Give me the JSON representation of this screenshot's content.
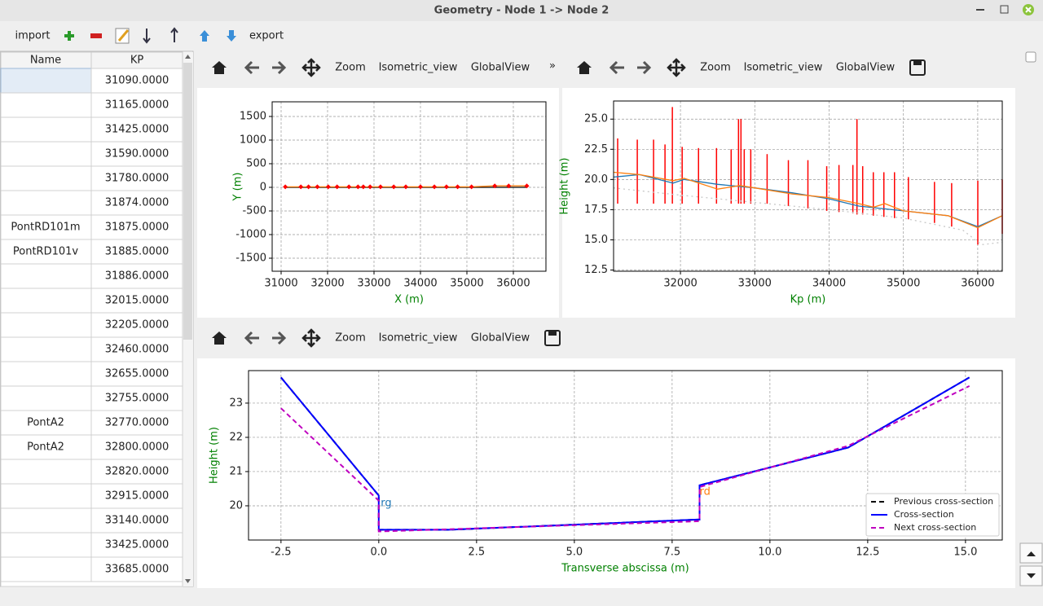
{
  "window": {
    "title": "Geometry - Node 1 -> Node 2"
  },
  "toolbar": {
    "import": "import",
    "export": "export"
  },
  "table": {
    "headers": [
      "Name",
      "KP"
    ],
    "rows": [
      [
        null,
        "31090.0000"
      ],
      [
        null,
        "31165.0000"
      ],
      [
        null,
        "31425.0000"
      ],
      [
        null,
        "31590.0000"
      ],
      [
        null,
        "31780.0000"
      ],
      [
        null,
        "31874.0000"
      ],
      [
        "PontRD101m",
        "31875.0000"
      ],
      [
        "PontRD101v",
        "31885.0000"
      ],
      [
        null,
        "31886.0000"
      ],
      [
        null,
        "32015.0000"
      ],
      [
        null,
        "32205.0000"
      ],
      [
        null,
        "32460.0000"
      ],
      [
        null,
        "32655.0000"
      ],
      [
        null,
        "32755.0000"
      ],
      [
        "PontA2",
        "32770.0000"
      ],
      [
        "PontA2",
        "32800.0000"
      ],
      [
        null,
        "32820.0000"
      ],
      [
        null,
        "32915.0000"
      ],
      [
        null,
        "33140.0000"
      ],
      [
        null,
        "33425.0000"
      ],
      [
        null,
        "33685.0000"
      ]
    ]
  },
  "plot_toolbars": [
    {
      "buttons": [
        "Zoom",
        "Isometric_view",
        "GlobalView"
      ],
      "overflow": "»"
    },
    {
      "buttons": [
        "Zoom",
        "Isometric_view",
        "GlobalView"
      ]
    },
    {
      "buttons": [
        "Zoom",
        "Isometric_view",
        "GlobalView"
      ]
    }
  ],
  "plots": [
    {
      "type": "line",
      "xlabel": "X (m)",
      "ylabel": "Y (m)",
      "xlim": [
        30807,
        36702
      ],
      "ylim": [
        -1776,
        1810
      ],
      "xticks": [
        31000,
        32000,
        33000,
        34000,
        35000,
        36000
      ],
      "yticks": [
        -1500,
        -1000,
        -500,
        0,
        500,
        1000,
        1500
      ],
      "grid": true,
      "series": [
        {
          "color": "#000000",
          "x": [
            31090,
            31425,
            31590,
            31780,
            32015,
            32205,
            32460,
            32655,
            32770,
            32915,
            33140,
            33425,
            33685,
            34000,
            34300,
            34560,
            34800,
            35100,
            35600,
            35900,
            36290
          ],
          "y": [
            0,
            0,
            0,
            0,
            0,
            0,
            0,
            0,
            0,
            0,
            0,
            0,
            0,
            0,
            0,
            0,
            0,
            0,
            0,
            0,
            0
          ]
        },
        {
          "color": "#ff7f0e",
          "marker_color": "#ff0000",
          "x": [
            31090,
            31425,
            31590,
            31780,
            32015,
            32205,
            32460,
            32655,
            32770,
            32915,
            33140,
            33425,
            33685,
            34000,
            34300,
            34560,
            34800,
            35100,
            35600,
            35900,
            36290
          ],
          "y": [
            10,
            10,
            10,
            10,
            10,
            10,
            10,
            10,
            10,
            10,
            10,
            10,
            10,
            10,
            10,
            10,
            10,
            10,
            30,
            30,
            30
          ]
        }
      ]
    },
    {
      "type": "line",
      "xlabel": "Kp (m)",
      "ylabel": "Height (m)",
      "xlim": [
        31100,
        36330
      ],
      "ylim": [
        12.4,
        26.5
      ],
      "xticks": [
        32000,
        33000,
        34000,
        35000,
        36000
      ],
      "yticks": [
        12.5,
        {
          "value": 15,
          "label": "15.0"
        },
        17.5,
        {
          "value": 20,
          "label": "20.0"
        },
        22.5,
        {
          "value": 25,
          "label": "25.0"
        }
      ],
      "grid": true,
      "vlines": {
        "color": "#ff0000",
        "x": [
          31155,
          31419,
          31638,
          31792,
          31891,
          32023,
          32243,
          32485,
          32682,
          32781,
          32814,
          32858,
          32946,
          33166,
          33452,
          33715,
          33968,
          34133,
          34320,
          34375,
          34452,
          34595,
          34737,
          34880,
          35067,
          35418,
          35649,
          36001,
          36330
        ],
        "low": [
          18.0,
          18.0,
          18.0,
          18.0,
          18.0,
          18.0,
          18.0,
          18.0,
          18.0,
          18.0,
          18.0,
          18.0,
          18.0,
          18.0,
          17.8,
          17.6,
          17.4,
          17.3,
          17.2,
          17.1,
          17.1,
          17.0,
          16.9,
          16.8,
          16.7,
          16.4,
          16.1,
          14.6,
          15.5
        ],
        "high": [
          23.4,
          23.3,
          23.3,
          22.9,
          26.0,
          22.7,
          22.6,
          22.6,
          22.5,
          25.0,
          25.0,
          22.5,
          22.5,
          22.1,
          21.6,
          21.6,
          21.1,
          21.2,
          21.2,
          25.0,
          21.1,
          20.6,
          20.6,
          20.6,
          20.2,
          19.8,
          19.7,
          19.9,
          20.0
        ]
      },
      "series": [
        {
          "color": "#c8c8c8",
          "style": "dotted",
          "x": [
            31100,
            32000,
            33000,
            34000,
            35000,
            35800,
            36050,
            36330
          ],
          "y": [
            19.3,
            18.7,
            18.1,
            17.5,
            16.8,
            15.8,
            14.6,
            14.8
          ]
        },
        {
          "color": "#1f77b4",
          "x": [
            31100,
            31450,
            31900,
            32050,
            32500,
            33000,
            33500,
            34000,
            34400,
            35000,
            35600,
            36000,
            36330
          ],
          "y": [
            20.2,
            20.4,
            19.7,
            20.0,
            19.6,
            19.3,
            18.9,
            18.4,
            17.8,
            17.4,
            17.0,
            16.1,
            17.0
          ]
        },
        {
          "color": "#ff7f0e",
          "x": [
            31100,
            31450,
            31900,
            32050,
            32500,
            32800,
            33000,
            33500,
            34000,
            34400,
            34600,
            34750,
            35000,
            35600,
            36000,
            36330
          ],
          "y": [
            20.6,
            20.4,
            19.9,
            20.1,
            19.2,
            19.5,
            19.3,
            18.8,
            18.5,
            18.0,
            17.7,
            18.0,
            17.4,
            17.0,
            16.0,
            17.0
          ]
        }
      ]
    },
    {
      "type": "line",
      "xlabel": "Transverse abscissa (m)",
      "ylabel": "Height (m)",
      "xlim": [
        -3.33,
        15.94
      ],
      "ylim": [
        19.0,
        23.95
      ],
      "xticks": [
        -2.5,
        {
          "value": 0,
          "label": "0.0"
        },
        2.5,
        {
          "value": 5,
          "label": "5.0"
        },
        7.5,
        {
          "value": 10,
          "label": "10.0"
        },
        12.5,
        {
          "value": 15,
          "label": "15.0"
        }
      ],
      "yticks": [
        20,
        21,
        22,
        23
      ],
      "grid": true,
      "legend": "lower right",
      "series": [
        {
          "name": "Previous cross-section",
          "color": "#000000",
          "style": "dashed",
          "x": [
            -2.5,
            0,
            0,
            1.8,
            8.2,
            8.2,
            12,
            15.1
          ],
          "y": [
            23.75,
            20.3,
            19.3,
            19.3,
            19.6,
            20.6,
            21.7,
            23.75
          ]
        },
        {
          "name": "Cross-section",
          "color": "#0000ff",
          "x": [
            -2.5,
            0,
            0,
            1.8,
            8.2,
            8.2,
            12,
            15.1
          ],
          "y": [
            23.75,
            20.3,
            19.3,
            19.3,
            19.6,
            20.6,
            21.7,
            23.75
          ]
        },
        {
          "name": "Next cross-section",
          "color": "#bf00bf",
          "style": "dashed",
          "x": [
            -2.5,
            0,
            0,
            8.2,
            8.2,
            12,
            15.1
          ],
          "y": [
            22.85,
            20.15,
            19.25,
            19.55,
            20.55,
            21.75,
            23.5
          ]
        }
      ],
      "annotations": [
        {
          "text": "rg",
          "x": 0.05,
          "y": 20.07,
          "color": "#1f77b4"
        },
        {
          "text": "rd",
          "x": 8.2,
          "y": 20.4,
          "color": "#ff7f0e"
        }
      ]
    }
  ]
}
